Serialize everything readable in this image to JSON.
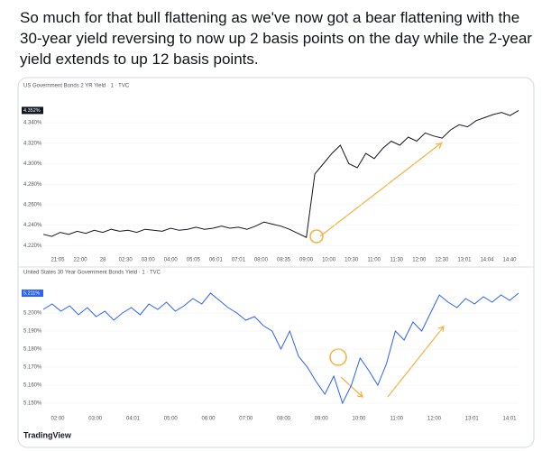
{
  "tweet": {
    "text": "So much for that bull flattening as we've now got a bear flattening with the 30-year yield reversing to now up 2 basis points on the day while the 2-year yield extends to up 12 basis points."
  },
  "footer": "TradingView",
  "charts": [
    {
      "title": "US Government Bonds 2 YR Yield · 1 · TVC",
      "color": "#131722",
      "price_label": "4.352%",
      "ylim": [
        4.215,
        4.37
      ],
      "yticks": [
        {
          "value": 4.34,
          "label": "4.340%"
        },
        {
          "value": 4.32,
          "label": "4.320%"
        },
        {
          "value": 4.3,
          "label": "4.300%"
        },
        {
          "value": 4.28,
          "label": "4.280%"
        },
        {
          "value": 4.26,
          "label": "4.260%"
        },
        {
          "value": 4.24,
          "label": "4.240%"
        },
        {
          "value": 4.22,
          "label": "4.220%"
        }
      ],
      "xticks": [
        "21:05",
        "22:00",
        "28",
        "02:30",
        "03:00",
        "04:00",
        "05:05",
        "06:01",
        "07:01",
        "08:00",
        "08:35",
        "09:00",
        "10:00",
        "10:30",
        "11:00",
        "11:30",
        "12:00",
        "12:30",
        "13:01",
        "14:04",
        "14:40"
      ],
      "values": [
        4.231,
        4.229,
        4.233,
        4.231,
        4.234,
        4.232,
        4.235,
        4.233,
        4.236,
        4.234,
        4.235,
        4.233,
        4.236,
        4.235,
        4.234,
        4.237,
        4.235,
        4.236,
        4.238,
        4.236,
        4.237,
        4.239,
        4.237,
        4.238,
        4.236,
        4.239,
        4.243,
        4.241,
        4.239,
        4.236,
        4.232,
        4.228,
        4.29,
        4.3,
        4.31,
        4.318,
        4.3,
        4.296,
        4.31,
        4.305,
        4.315,
        4.322,
        4.318,
        4.326,
        4.322,
        4.33,
        4.327,
        4.325,
        4.333,
        4.338,
        4.336,
        4.342,
        4.345,
        4.348,
        4.35,
        4.347,
        4.352
      ]
    },
    {
      "title": "United States 30 Year Government Bonds Yield · 1 · TVC",
      "color": "#2962ff",
      "price_label": "5.211%",
      "ylim": [
        5.146,
        5.2185
      ],
      "yticks": [
        {
          "value": 5.2,
          "label": "5.200%"
        },
        {
          "value": 5.19,
          "label": "5.190%"
        },
        {
          "value": 5.18,
          "label": "5.180%"
        },
        {
          "value": 5.17,
          "label": "5.170%"
        },
        {
          "value": 5.16,
          "label": "5.160%"
        },
        {
          "value": 5.15,
          "label": "5.150%"
        }
      ],
      "xticks": [
        "02:00",
        "03:00",
        "04:01",
        "05:00",
        "06:00",
        "07:00",
        "08:00",
        "09:00",
        "10:00",
        "11:00",
        "12:00",
        "13:01",
        "14:01"
      ],
      "values": [
        5.202,
        5.205,
        5.201,
        5.204,
        5.199,
        5.203,
        5.198,
        5.201,
        5.196,
        5.2,
        5.203,
        5.199,
        5.205,
        5.202,
        5.206,
        5.201,
        5.204,
        5.208,
        5.205,
        5.211,
        5.207,
        5.203,
        5.2,
        5.196,
        5.198,
        5.193,
        5.19,
        5.18,
        5.19,
        5.176,
        5.17,
        5.162,
        5.155,
        5.165,
        5.15,
        5.16,
        5.175,
        5.168,
        5.16,
        5.172,
        5.19,
        5.185,
        5.195,
        5.19,
        5.2,
        5.21,
        5.206,
        5.203,
        5.208,
        5.205,
        5.209,
        5.206,
        5.21,
        5.207,
        5.211
      ]
    }
  ]
}
